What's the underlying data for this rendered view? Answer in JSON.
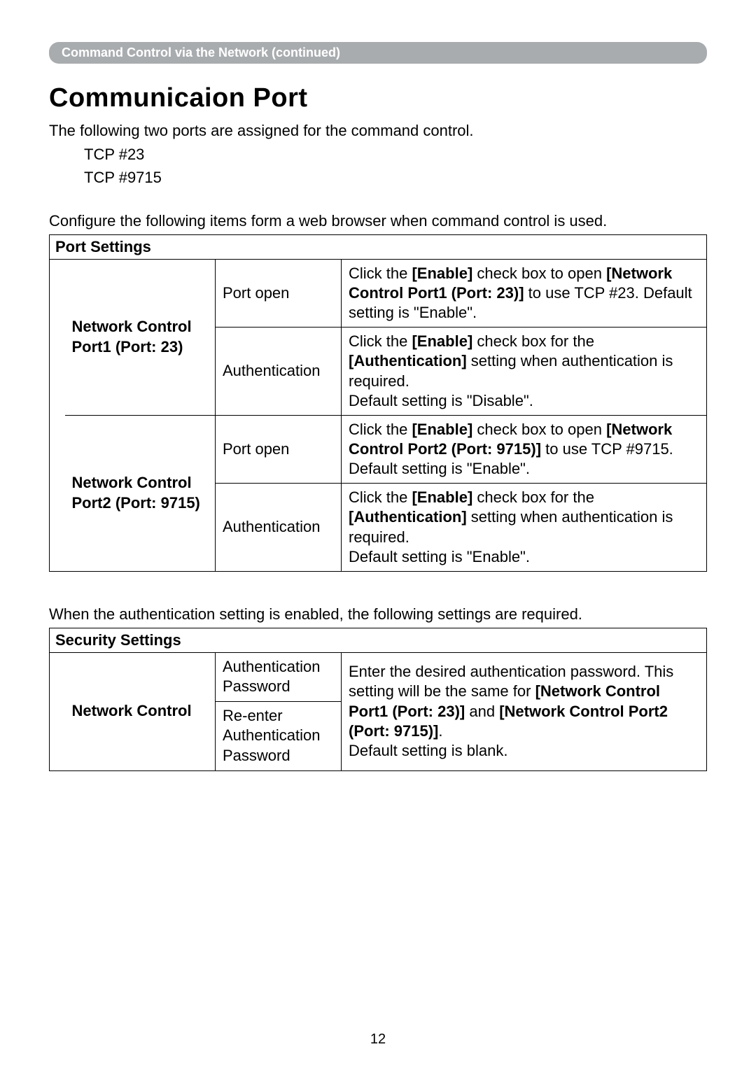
{
  "breadcrumb": "Command Control via the Network (continued)",
  "title": "Communicaion Port",
  "intro": "The following two ports are assigned for the command control.",
  "ports_line1": "TCP #23",
  "ports_line2": "TCP #9715",
  "config_note": "Configure the following items form a web browser when command control is used.",
  "port_table": {
    "header": "Port Settings",
    "rows": [
      {
        "label": "Network Control Port1 (Port: 23)",
        "sub": [
          {
            "field": "Port open",
            "desc_parts": [
              {
                "t": "Click the ",
                "b": false
              },
              {
                "t": "[Enable]",
                "b": true
              },
              {
                "t": " check box to open ",
                "b": false
              },
              {
                "t": "[Network Control Port1 (Port: 23)]",
                "b": true
              },
              {
                "t": " to use TCP #23. Default setting is \"Enable\".",
                "b": false
              }
            ]
          },
          {
            "field": "Authentication",
            "desc_parts": [
              {
                "t": "Click the ",
                "b": false
              },
              {
                "t": "[Enable]",
                "b": true
              },
              {
                "t": " check box for the ",
                "b": false
              },
              {
                "t": "[Authentication]",
                "b": true
              },
              {
                "t": " setting when authentication is required.\nDefault setting is \"Disable\".",
                "b": false
              }
            ]
          }
        ]
      },
      {
        "label": "Network Control Port2 (Port: 9715)",
        "sub": [
          {
            "field": "Port open",
            "desc_parts": [
              {
                "t": "Click the ",
                "b": false
              },
              {
                "t": "[Enable]",
                "b": true
              },
              {
                "t": " check box to open ",
                "b": false
              },
              {
                "t": "[Network Control Port2 (Port: 9715)]",
                "b": true
              },
              {
                "t": " to use TCP #9715.\nDefault setting is \"Enable\".",
                "b": false
              }
            ]
          },
          {
            "field": "Authentication",
            "desc_parts": [
              {
                "t": "Click the ",
                "b": false
              },
              {
                "t": "[Enable]",
                "b": true
              },
              {
                "t": " check box for the ",
                "b": false
              },
              {
                "t": "[Authentication]",
                "b": true
              },
              {
                "t": " setting when authentication is required.\nDefault setting is \"Enable\".",
                "b": false
              }
            ]
          }
        ]
      }
    ]
  },
  "auth_note": "When the authentication setting is enabled, the following settings are required.",
  "security_table": {
    "header": "Security Settings",
    "label": "Network Control",
    "field1": "Authentication Password",
    "field2": "Re-enter Authentication Password",
    "desc_parts": [
      {
        "t": "Enter the desired authentication password. This setting will be the same for ",
        "b": false
      },
      {
        "t": "[Network Control Port1 (Port: 23)]",
        "b": true
      },
      {
        "t": " and ",
        "b": false
      },
      {
        "t": "[Network Control Port2 (Port: 9715)]",
        "b": true
      },
      {
        "t": ".\nDefault setting is blank.",
        "b": false
      }
    ]
  },
  "page_number": "12"
}
